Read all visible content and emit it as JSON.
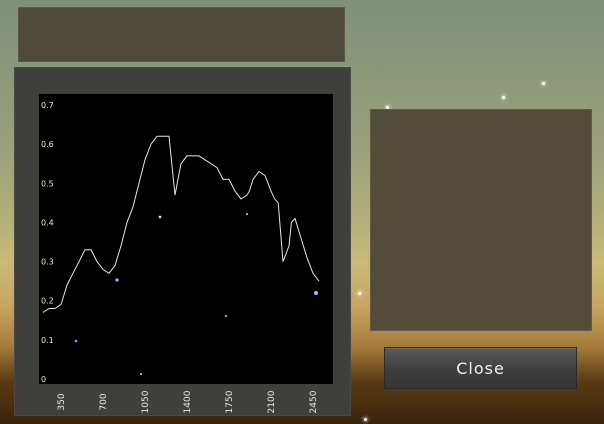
{
  "window": {
    "close_label": "Close"
  },
  "colors": {
    "plot_background": "#000000",
    "curve": "#e6e6e6",
    "panel": "#544c3b",
    "frame": "#3f403b"
  },
  "chart_data": {
    "type": "line",
    "title": "",
    "xlabel": "",
    "ylabel": "",
    "xlim": [
      200,
      2550
    ],
    "ylim": [
      0,
      0.7
    ],
    "grid": false,
    "x_ticks": [
      350,
      700,
      1050,
      1400,
      1750,
      2100,
      2450
    ],
    "x_tick_labels": [
      "350",
      "700",
      "1050",
      "1400",
      "1750",
      "2100",
      "2450"
    ],
    "y_ticks": [
      0,
      0.1,
      0.2,
      0.3,
      0.4,
      0.5,
      0.6,
      0.7
    ],
    "y_tick_labels": [
      "0",
      "0.1",
      "0.2",
      "0.3",
      "0.4",
      "0.5",
      "0.6",
      "0.7"
    ],
    "series": [
      {
        "x": [
          200,
          250,
          300,
          350,
          400,
          450,
          500,
          550,
          600,
          650,
          700,
          750,
          800,
          850,
          900,
          950,
          1000,
          1050,
          1100,
          1150,
          1200,
          1250,
          1300,
          1350,
          1400,
          1430,
          1460,
          1500,
          1550,
          1600,
          1650,
          1700,
          1750,
          1800,
          1850,
          1900,
          1920,
          1950,
          2000,
          2050,
          2100,
          2130,
          2160,
          2200,
          2250,
          2270,
          2300,
          2350,
          2400,
          2450,
          2500
        ],
        "y": [
          0.17,
          0.18,
          0.18,
          0.19,
          0.24,
          0.27,
          0.3,
          0.33,
          0.33,
          0.3,
          0.28,
          0.27,
          0.29,
          0.34,
          0.4,
          0.44,
          0.5,
          0.56,
          0.6,
          0.62,
          0.62,
          0.62,
          0.47,
          0.55,
          0.57,
          0.57,
          0.57,
          0.57,
          0.56,
          0.55,
          0.54,
          0.51,
          0.51,
          0.48,
          0.46,
          0.47,
          0.48,
          0.51,
          0.53,
          0.52,
          0.48,
          0.46,
          0.45,
          0.3,
          0.34,
          0.4,
          0.41,
          0.36,
          0.31,
          0.27,
          0.25
        ]
      }
    ]
  }
}
